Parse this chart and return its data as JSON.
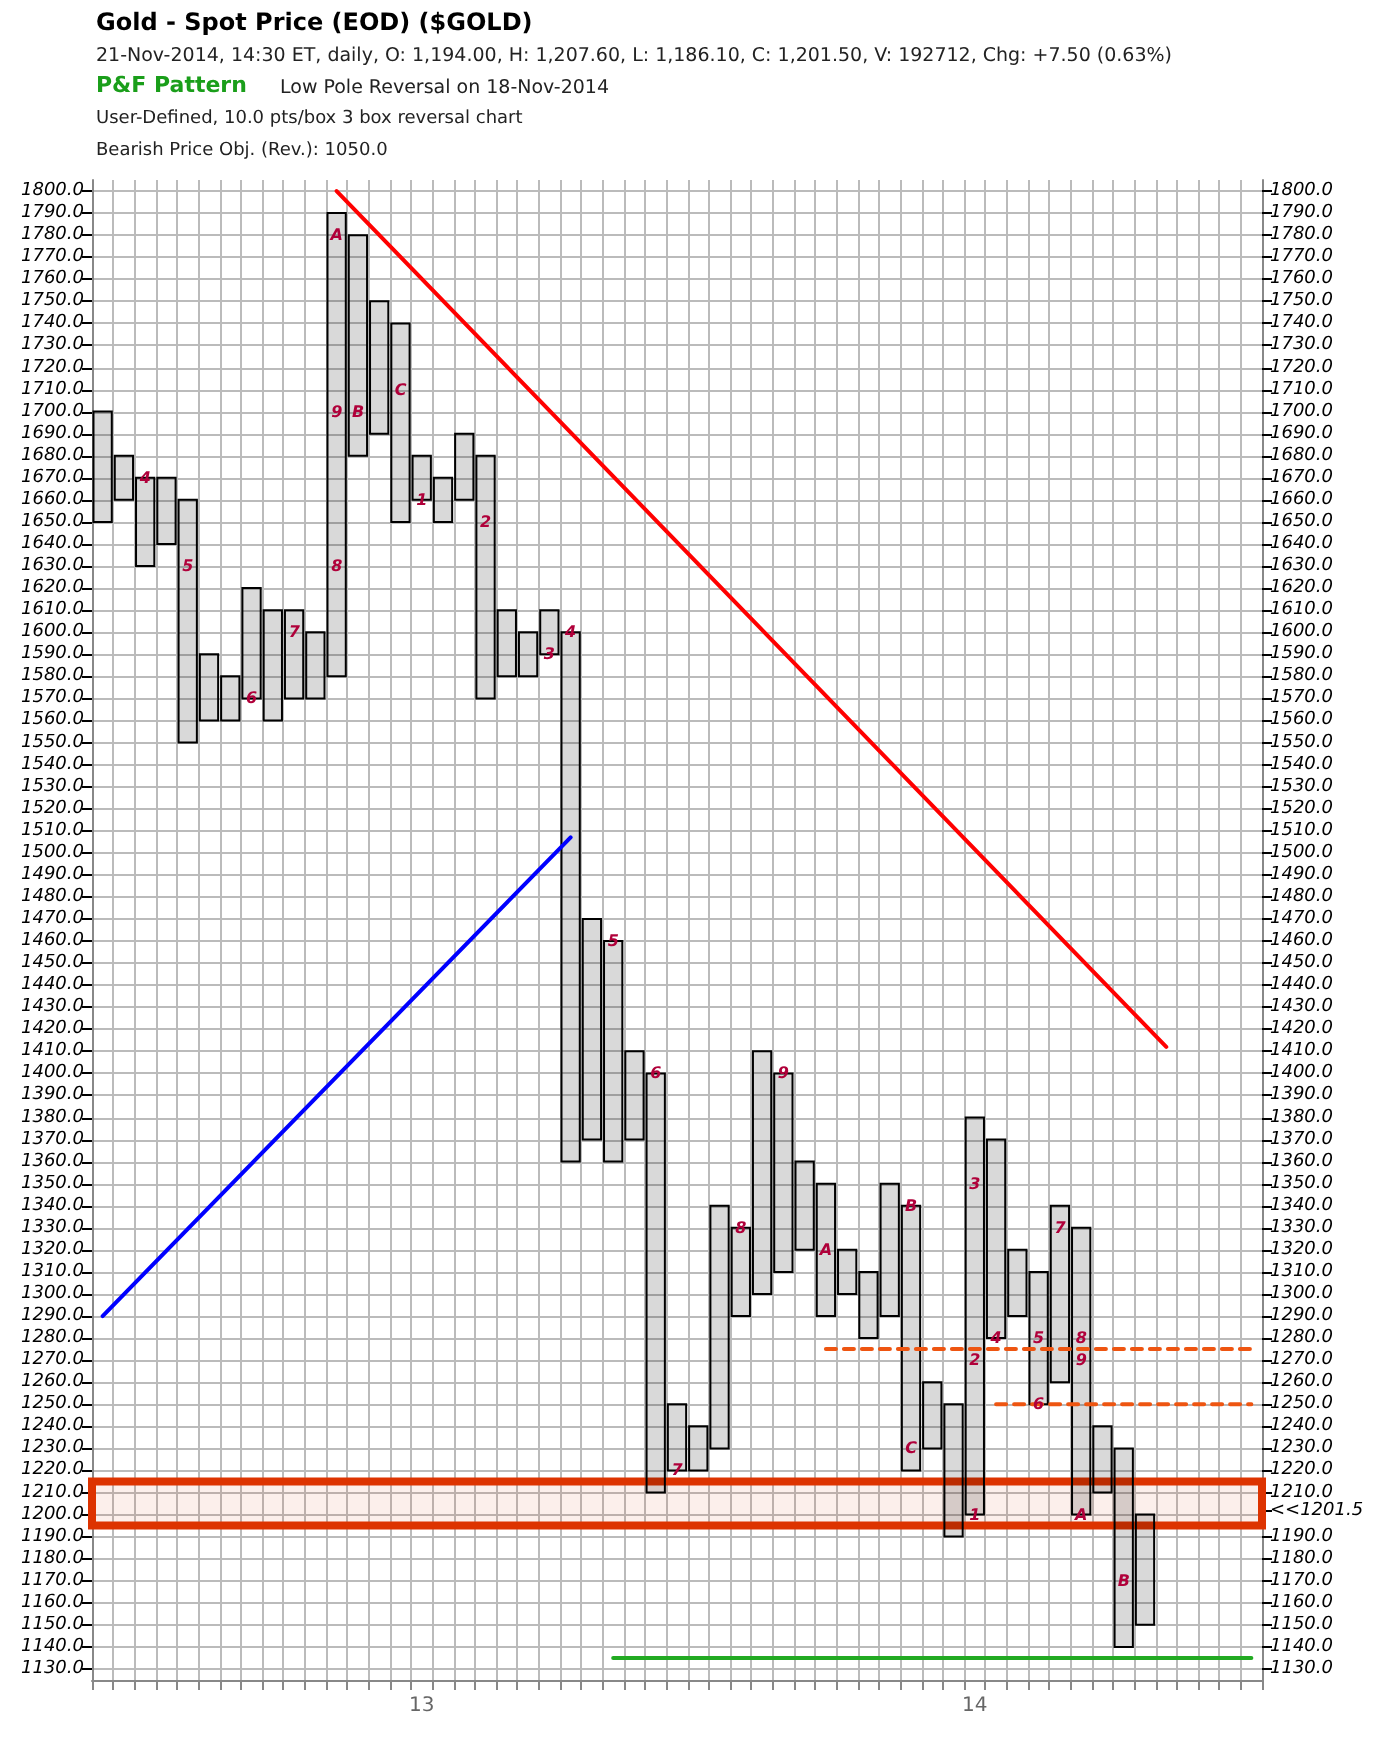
{
  "chart_data": {
    "type": "bar",
    "title": "Gold - Spot Price (EOD) ($GOLD)",
    "subtitle": "21-Nov-2014, 14:30 ET, daily, O: 1,194.00, H: 1,207.60, L: 1,186.10, C: 1,201.50, V: 192712, Chg: +7.50 (0.63%)",
    "annotations": [
      "P&F Pattern",
      "Low Pole Reversal on 18-Nov-2014",
      "User-Defined, 10.0 pts/box 3 box reversal chart",
      "Bearish Price Obj. (Rev.): 1050.0",
      "4",
      "5",
      "6",
      "7",
      "8",
      "9",
      "A",
      "B",
      "C",
      "1",
      "2",
      "3",
      "4",
      "5",
      "6",
      "7",
      "8",
      "9",
      "A",
      "B",
      "C",
      "1",
      "2",
      "3",
      "4",
      "5",
      "6",
      "7",
      "8",
      "9",
      "A",
      "B"
    ],
    "categories": [
      null,
      null,
      null,
      null,
      null,
      null,
      null,
      null,
      null,
      null,
      null,
      null,
      null,
      null,
      null,
      "13",
      null,
      null,
      null,
      null,
      null,
      null,
      null,
      null,
      null,
      null,
      null,
      null,
      null,
      null,
      null,
      null,
      null,
      null,
      null,
      null,
      null,
      null,
      null,
      null,
      null,
      "14",
      null,
      null,
      null,
      null,
      null,
      null,
      null,
      null,
      null,
      null,
      null,
      null,
      null
    ],
    "base": [
      1650,
      1660,
      1630,
      1640,
      1550,
      1560,
      1560,
      1570,
      1560,
      1570,
      1570,
      1580,
      1680,
      1690,
      1650,
      1660,
      1650,
      1660,
      1570,
      1580,
      1580,
      1590,
      1360,
      1370,
      1360,
      1370,
      1210,
      1220,
      1220,
      1230,
      1290,
      1300,
      1310,
      1320,
      1290,
      1300,
      1280,
      1290,
      1220,
      1230,
      1190,
      1200,
      1280,
      1290,
      1250,
      1260,
      1200,
      1210,
      1140,
      1150,
      null,
      null,
      null,
      null,
      null
    ],
    "values": [
      50,
      20,
      40,
      30,
      110,
      30,
      20,
      50,
      50,
      40,
      30,
      210,
      100,
      60,
      90,
      20,
      20,
      30,
      110,
      30,
      20,
      20,
      240,
      100,
      100,
      40,
      190,
      30,
      20,
      110,
      40,
      110,
      90,
      40,
      60,
      20,
      30,
      60,
      120,
      30,
      60,
      180,
      90,
      30,
      60,
      80,
      130,
      30,
      90,
      50,
      null,
      null,
      null,
      null,
      null
    ],
    "colors": [
      "#000000",
      "#000000",
      "#000000",
      "#000000",
      "#000000",
      "#000000",
      "#000000",
      "#000000",
      "#000000",
      "#000000",
      "#000000",
      "#000000",
      "#000000",
      "#000000",
      "#000000",
      "#000000",
      "#000000",
      "#000000",
      "#000000",
      "#000000",
      "#000000",
      "#000000",
      "#000000",
      "#000000",
      "#000000",
      "#000000",
      "#000000",
      "#000000",
      "#000000",
      "#000000",
      "#000000",
      "#000000",
      "#000000",
      "#000000",
      "#000000",
      "#000000",
      "#000000",
      "#000000",
      "#000000",
      "#000000",
      "#000000",
      "#000000",
      "#000000",
      "#000000",
      "#000000",
      "#000000",
      "#000000",
      "#000000",
      "#000000",
      "#000000",
      null,
      null,
      null,
      null,
      null
    ],
    "series": [
      {
        "type": "line",
        "values": [
          null,
          null,
          null,
          null,
          null,
          null,
          null,
          null,
          null,
          null,
          null,
          1800,
          null,
          null,
          null,
          null,
          null,
          null,
          null,
          null,
          null,
          null,
          null,
          null,
          null,
          null,
          null,
          null,
          null,
          null,
          null,
          null,
          null,
          null,
          null,
          null,
          null,
          null,
          null,
          null,
          null,
          null,
          null,
          null,
          null,
          null,
          null,
          null,
          null,
          null,
          1412,
          null,
          null,
          null,
          null
        ],
        "color": "#ff0000",
        "line_style": "solid"
      },
      {
        "type": "line",
        "values": [
          1290,
          null,
          null,
          null,
          null,
          null,
          null,
          null,
          null,
          null,
          null,
          null,
          null,
          null,
          null,
          null,
          null,
          null,
          null,
          null,
          null,
          null,
          1507,
          null,
          null,
          null,
          null,
          null,
          null,
          null,
          null,
          null,
          null,
          null,
          null,
          null,
          null,
          null,
          null,
          null,
          null,
          null,
          null,
          null,
          null,
          null,
          null,
          null,
          null,
          null,
          null,
          null,
          null,
          null,
          null
        ],
        "color": "#0000ff",
        "line_style": "solid"
      },
      {
        "type": "line",
        "values": [
          null,
          null,
          null,
          null,
          null,
          null,
          null,
          null,
          null,
          null,
          null,
          null,
          null,
          null,
          null,
          null,
          null,
          null,
          null,
          null,
          null,
          null,
          null,
          null,
          null,
          null,
          null,
          null,
          null,
          null,
          null,
          null,
          null,
          null,
          1275,
          null,
          null,
          null,
          null,
          null,
          null,
          null,
          null,
          null,
          null,
          null,
          null,
          null,
          null,
          null,
          null,
          null,
          null,
          null,
          1275
        ],
        "color": "#ee5511",
        "line_style": "dashed"
      },
      {
        "type": "line",
        "values": [
          null,
          null,
          null,
          null,
          null,
          null,
          null,
          null,
          null,
          null,
          null,
          null,
          null,
          null,
          null,
          null,
          null,
          null,
          null,
          null,
          null,
          null,
          null,
          null,
          null,
          null,
          null,
          null,
          null,
          null,
          null,
          null,
          null,
          null,
          null,
          null,
          null,
          null,
          null,
          null,
          null,
          null,
          1250,
          null,
          null,
          null,
          null,
          null,
          null,
          null,
          null,
          null,
          null,
          null,
          1250
        ],
        "color": "#ee5511",
        "line_style": "dashed"
      },
      {
        "type": "line",
        "values": [
          null,
          null,
          null,
          null,
          null,
          null,
          null,
          null,
          null,
          null,
          null,
          null,
          null,
          null,
          null,
          null,
          null,
          null,
          null,
          null,
          null,
          null,
          null,
          null,
          1135,
          null,
          null,
          null,
          null,
          null,
          null,
          null,
          null,
          null,
          null,
          null,
          null,
          null,
          null,
          null,
          null,
          null,
          null,
          null,
          null,
          null,
          null,
          null,
          null,
          null,
          null,
          null,
          null,
          null,
          1135
        ],
        "color": "#22aa22",
        "line_style": "solid"
      }
    ],
    "bands": [
      {
        "axis": "y",
        "from": 1195,
        "to": 1215,
        "color": "#dd3300"
      }
    ],
    "marker": "none",
    "grid": true,
    "ylim": [
      1125,
      1805
    ],
    "yticks": [
      {
        "value": 1130,
        "label": "1130.0"
      },
      {
        "value": 1140,
        "label": "1140.0"
      },
      {
        "value": 1150,
        "label": "1150.0"
      },
      {
        "value": 1160,
        "label": "1160.0"
      },
      {
        "value": 1170,
        "label": "1170.0"
      },
      {
        "value": 1180,
        "label": "1180.0"
      },
      {
        "value": 1190,
        "label": "1190.0"
      },
      {
        "value": 1200,
        "label": "1200.0"
      },
      {
        "value": 1210,
        "label": "1210.0"
      },
      {
        "value": 1220,
        "label": "1220.0"
      },
      {
        "value": 1230,
        "label": "1230.0"
      },
      {
        "value": 1240,
        "label": "1240.0"
      },
      {
        "value": 1250,
        "label": "1250.0"
      },
      {
        "value": 1260,
        "label": "1260.0"
      },
      {
        "value": 1270,
        "label": "1270.0"
      },
      {
        "value": 1280,
        "label": "1280.0"
      },
      {
        "value": 1290,
        "label": "1290.0"
      },
      {
        "value": 1300,
        "label": "1300.0"
      },
      {
        "value": 1310,
        "label": "1310.0"
      },
      {
        "value": 1320,
        "label": "1320.0"
      },
      {
        "value": 1330,
        "label": "1330.0"
      },
      {
        "value": 1340,
        "label": "1340.0"
      },
      {
        "value": 1350,
        "label": "1350.0"
      },
      {
        "value": 1360,
        "label": "1360.0"
      },
      {
        "value": 1370,
        "label": "1370.0"
      },
      {
        "value": 1380,
        "label": "1380.0"
      },
      {
        "value": 1390,
        "label": "1390.0"
      },
      {
        "value": 1400,
        "label": "1400.0"
      },
      {
        "value": 1410,
        "label": "1410.0"
      },
      {
        "value": 1420,
        "label": "1420.0"
      },
      {
        "value": 1430,
        "label": "1430.0"
      },
      {
        "value": 1440,
        "label": "1440.0"
      },
      {
        "value": 1450,
        "label": "1450.0"
      },
      {
        "value": 1460,
        "label": "1460.0"
      },
      {
        "value": 1470,
        "label": "1470.0"
      },
      {
        "value": 1480,
        "label": "1480.0"
      },
      {
        "value": 1490,
        "label": "1490.0"
      },
      {
        "value": 1500,
        "label": "1500.0"
      },
      {
        "value": 1510,
        "label": "1510.0"
      },
      {
        "value": 1520,
        "label": "1520.0"
      },
      {
        "value": 1530,
        "label": "1530.0"
      },
      {
        "value": 1540,
        "label": "1540.0"
      },
      {
        "value": 1550,
        "label": "1550.0"
      },
      {
        "value": 1560,
        "label": "1560.0"
      },
      {
        "value": 1570,
        "label": "1570.0"
      },
      {
        "value": 1580,
        "label": "1580.0"
      },
      {
        "value": 1590,
        "label": "1590.0"
      },
      {
        "value": 1600,
        "label": "1600.0"
      },
      {
        "value": 1610,
        "label": "1610.0"
      },
      {
        "value": 1620,
        "label": "1620.0"
      },
      {
        "value": 1630,
        "label": "1630.0"
      },
      {
        "value": 1640,
        "label": "1640.0"
      },
      {
        "value": 1650,
        "label": "1650.0"
      },
      {
        "value": 1660,
        "label": "1660.0"
      },
      {
        "value": 1670,
        "label": "1670.0"
      },
      {
        "value": 1680,
        "label": "1680.0"
      },
      {
        "value": 1690,
        "label": "1690.0"
      },
      {
        "value": 1700,
        "label": "1700.0"
      },
      {
        "value": 1710,
        "label": "1710.0"
      },
      {
        "value": 1720,
        "label": "1720.0"
      },
      {
        "value": 1730,
        "label": "1730.0"
      },
      {
        "value": 1740,
        "label": "1740.0"
      },
      {
        "value": 1750,
        "label": "1750.0"
      },
      {
        "value": 1760,
        "label": "1760.0"
      },
      {
        "value": 1770,
        "label": "1770.0"
      },
      {
        "value": 1780,
        "label": "1780.0"
      },
      {
        "value": 1790,
        "label": "1790.0"
      },
      {
        "value": 1800,
        "label": "1800.0"
      }
    ],
    "y2lim": [
      1125,
      1805
    ],
    "y2ticks": [
      {
        "value": 1130,
        "label": "1130.0"
      },
      {
        "value": 1140,
        "label": "1140.0"
      },
      {
        "value": 1150,
        "label": "1150.0"
      },
      {
        "value": 1160,
        "label": "1160.0"
      },
      {
        "value": 1170,
        "label": "1170.0"
      },
      {
        "value": 1180,
        "label": "1180.0"
      },
      {
        "value": 1190,
        "label": "1190.0"
      },
      {
        "value": 1201.5,
        "label": "<<1201.5"
      },
      {
        "value": 1210,
        "label": "1210.0"
      },
      {
        "value": 1220,
        "label": "1220.0"
      },
      {
        "value": 1230,
        "label": "1230.0"
      },
      {
        "value": 1240,
        "label": "1240.0"
      },
      {
        "value": 1250,
        "label": "1250.0"
      },
      {
        "value": 1260,
        "label": "1260.0"
      },
      {
        "value": 1270,
        "label": "1270.0"
      },
      {
        "value": 1280,
        "label": "1280.0"
      },
      {
        "value": 1290,
        "label": "1290.0"
      },
      {
        "value": 1300,
        "label": "1300.0"
      },
      {
        "value": 1310,
        "label": "1310.0"
      },
      {
        "value": 1320,
        "label": "1320.0"
      },
      {
        "value": 1330,
        "label": "1330.0"
      },
      {
        "value": 1340,
        "label": "1340.0"
      },
      {
        "value": 1350,
        "label": "1350.0"
      },
      {
        "value": 1360,
        "label": "1360.0"
      },
      {
        "value": 1370,
        "label": "1370.0"
      },
      {
        "value": 1380,
        "label": "1380.0"
      },
      {
        "value": 1390,
        "label": "1390.0"
      },
      {
        "value": 1400,
        "label": "1400.0"
      },
      {
        "value": 1410,
        "label": "1410.0"
      },
      {
        "value": 1420,
        "label": "1420.0"
      },
      {
        "value": 1430,
        "label": "1430.0"
      },
      {
        "value": 1440,
        "label": "1440.0"
      },
      {
        "value": 1450,
        "label": "1450.0"
      },
      {
        "value": 1460,
        "label": "1460.0"
      },
      {
        "value": 1470,
        "label": "1470.0"
      },
      {
        "value": 1480,
        "label": "1480.0"
      },
      {
        "value": 1490,
        "label": "1490.0"
      },
      {
        "value": 1500,
        "label": "1500.0"
      },
      {
        "value": 1510,
        "label": "1510.0"
      },
      {
        "value": 1520,
        "label": "1520.0"
      },
      {
        "value": 1530,
        "label": "1530.0"
      },
      {
        "value": 1540,
        "label": "1540.0"
      },
      {
        "value": 1550,
        "label": "1550.0"
      },
      {
        "value": 1560,
        "label": "1560.0"
      },
      {
        "value": 1570,
        "label": "1570.0"
      },
      {
        "value": 1580,
        "label": "1580.0"
      },
      {
        "value": 1590,
        "label": "1590.0"
      },
      {
        "value": 1600,
        "label": "1600.0"
      },
      {
        "value": 1610,
        "label": "1610.0"
      },
      {
        "value": 1620,
        "label": "1620.0"
      },
      {
        "value": 1630,
        "label": "1630.0"
      },
      {
        "value": 1640,
        "label": "1640.0"
      },
      {
        "value": 1650,
        "label": "1650.0"
      },
      {
        "value": 1660,
        "label": "1660.0"
      },
      {
        "value": 1670,
        "label": "1670.0"
      },
      {
        "value": 1680,
        "label": "1680.0"
      },
      {
        "value": 1690,
        "label": "1690.0"
      },
      {
        "value": 1700,
        "label": "1700.0"
      },
      {
        "value": 1710,
        "label": "1710.0"
      },
      {
        "value": 1720,
        "label": "1720.0"
      },
      {
        "value": 1730,
        "label": "1730.0"
      },
      {
        "value": 1740,
        "label": "1740.0"
      },
      {
        "value": 1750,
        "label": "1750.0"
      },
      {
        "value": 1760,
        "label": "1760.0"
      },
      {
        "value": 1770,
        "label": "1770.0"
      },
      {
        "value": 1780,
        "label": "1780.0"
      },
      {
        "value": 1790,
        "label": "1790.0"
      },
      {
        "value": 1800,
        "label": "1800.0"
      }
    ]
  }
}
